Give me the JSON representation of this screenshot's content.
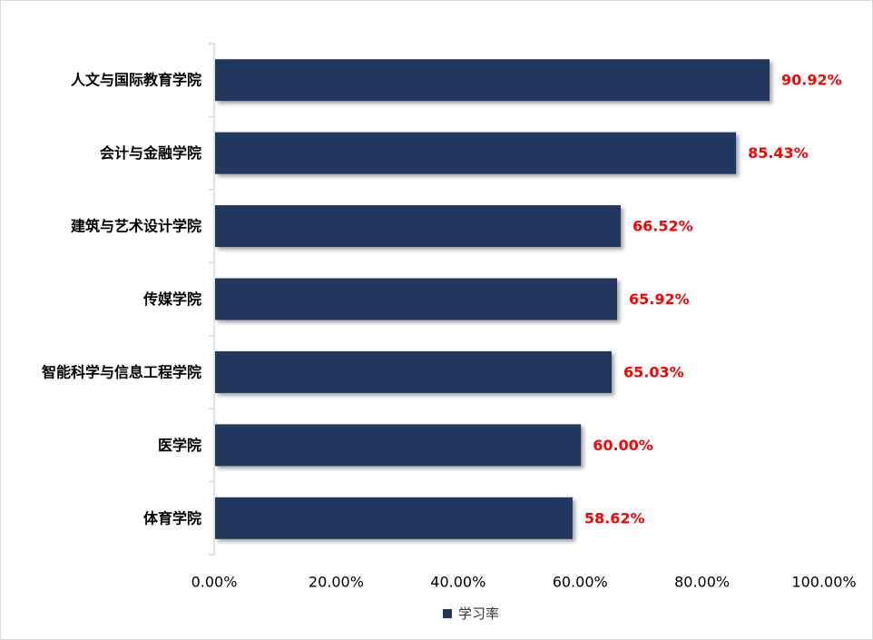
{
  "chart_data": {
    "type": "bar",
    "orientation": "horizontal",
    "categories": [
      "人文与国际教育学院",
      "会计与金融学院",
      "建筑与艺术设计学院",
      "传媒学院",
      "智能科学与信息工程学院",
      "医学院",
      "体育学院"
    ],
    "series": [
      {
        "name": "学习率",
        "values": [
          90.92,
          85.43,
          66.52,
          65.92,
          65.03,
          60.0,
          58.62
        ]
      }
    ],
    "data_labels": [
      "90.92%",
      "85.43%",
      "66.52%",
      "65.92%",
      "65.03%",
      "60.00%",
      "58.62%"
    ],
    "x_ticks": [
      "0.00%",
      "20.00%",
      "40.00%",
      "60.00%",
      "80.00%",
      "100.00%"
    ],
    "xlim": [
      0,
      100
    ],
    "grid": false,
    "legend_position": "bottom",
    "colors": {
      "bar": "#21375F",
      "data_label": "#FF0000",
      "axis": "#D9D9D9"
    }
  }
}
